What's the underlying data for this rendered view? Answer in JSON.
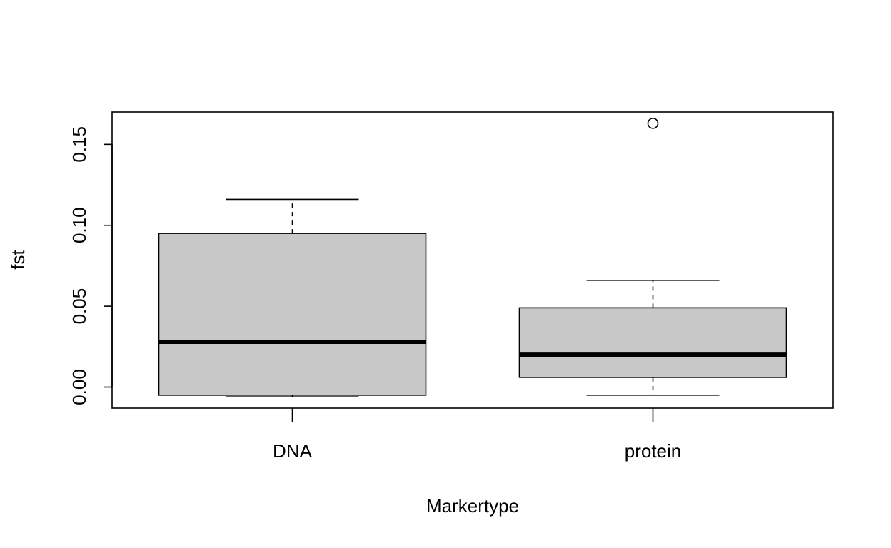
{
  "chart_data": {
    "type": "box",
    "title": "",
    "xlabel": "Markertype",
    "ylabel": "fst",
    "ylim": [
      -0.013,
      0.17
    ],
    "y_ticks": [
      0.0,
      0.05,
      0.1,
      0.15
    ],
    "y_tick_labels": [
      "0.00",
      "0.05",
      "0.10",
      "0.15"
    ],
    "categories": [
      "DNA",
      "protein"
    ],
    "box_color": "#c8c8c8",
    "boxes": [
      {
        "category": "DNA",
        "whisker_low": -0.006,
        "q1": -0.005,
        "median": 0.028,
        "q3": 0.095,
        "whisker_high": 0.116,
        "outliers": []
      },
      {
        "category": "protein",
        "whisker_low": -0.005,
        "q1": 0.006,
        "median": 0.02,
        "q3": 0.049,
        "whisker_high": 0.066,
        "outliers": [
          0.163
        ]
      }
    ]
  }
}
